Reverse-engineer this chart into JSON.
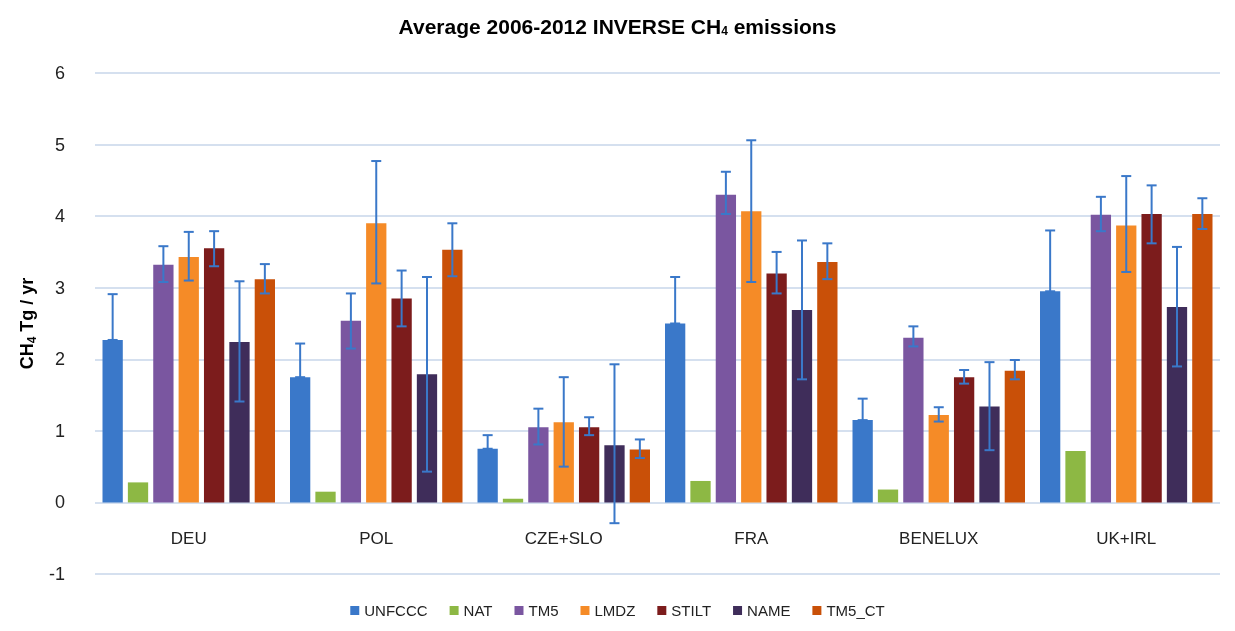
{
  "chart_data": {
    "type": "bar",
    "title": "Average 2006-2012 INVERSE CH$_{4}$ emissions",
    "ylabel": "CH$_{4}$ Tg / yr",
    "categories": [
      "DEU",
      "POL",
      "CZE+SLO",
      "FRA",
      "BENELUX",
      "UK+IRL"
    ],
    "series": [
      {
        "name": "UNFCCC",
        "color": "#3a78c9",
        "values": [
          2.27,
          1.75,
          0.75,
          2.5,
          1.15,
          2.95
        ],
        "errors": [
          [
            2.27,
            2.91
          ],
          [
            1.75,
            2.22
          ],
          [
            0.75,
            0.94
          ],
          [
            2.5,
            3.15
          ],
          [
            1.15,
            1.45
          ],
          [
            2.95,
            3.8
          ]
        ]
      },
      {
        "name": "NAT",
        "color": "#8db844",
        "values": [
          0.28,
          0.15,
          0.05,
          0.3,
          0.18,
          0.72
        ]
      },
      {
        "name": "TM5",
        "color": "#7a56a0",
        "values": [
          3.32,
          2.54,
          1.05,
          4.3,
          2.3,
          4.02
        ],
        "errors": [
          [
            3.08,
            3.58
          ],
          [
            2.15,
            2.92
          ],
          [
            0.81,
            1.31
          ],
          [
            4.03,
            4.62
          ],
          [
            2.18,
            2.46
          ],
          [
            3.79,
            4.27
          ]
        ]
      },
      {
        "name": "LMDZ",
        "color": "#f58b27",
        "values": [
          3.43,
          3.9,
          1.12,
          4.07,
          1.22,
          3.87
        ],
        "errors": [
          [
            3.1,
            3.78
          ],
          [
            3.06,
            4.77
          ],
          [
            0.5,
            1.75
          ],
          [
            3.08,
            5.06
          ],
          [
            1.13,
            1.33
          ],
          [
            3.22,
            4.56
          ]
        ]
      },
      {
        "name": "STILT",
        "color": "#7c1c1c",
        "values": [
          3.55,
          2.85,
          1.05,
          3.2,
          1.75,
          4.03
        ],
        "errors": [
          [
            3.3,
            3.79
          ],
          [
            2.46,
            3.24
          ],
          [
            0.94,
            1.19
          ],
          [
            2.92,
            3.5
          ],
          [
            1.66,
            1.85
          ],
          [
            3.62,
            4.43
          ]
        ]
      },
      {
        "name": "NAME",
        "color": "#3f2d5a",
        "values": [
          2.24,
          1.79,
          0.8,
          2.69,
          1.34,
          2.73
        ],
        "errors": [
          [
            1.41,
            3.09
          ],
          [
            0.43,
            3.15
          ],
          [
            -0.29,
            1.93
          ],
          [
            1.72,
            3.66
          ],
          [
            0.73,
            1.96
          ],
          [
            1.9,
            3.57
          ]
        ]
      },
      {
        "name": "TM5_CT",
        "color": "#c95008",
        "values": [
          3.12,
          3.53,
          0.74,
          3.36,
          1.84,
          4.03
        ],
        "errors": [
          [
            2.92,
            3.33
          ],
          [
            3.16,
            3.9
          ],
          [
            0.62,
            0.88
          ],
          [
            3.12,
            3.62
          ],
          [
            1.72,
            1.99
          ],
          [
            3.82,
            4.25
          ]
        ]
      }
    ],
    "ylim": [
      -1,
      6
    ],
    "yticks": [
      -1,
      0,
      1,
      2,
      3,
      4,
      5,
      6
    ],
    "grid": "y",
    "legend": "bottom"
  }
}
